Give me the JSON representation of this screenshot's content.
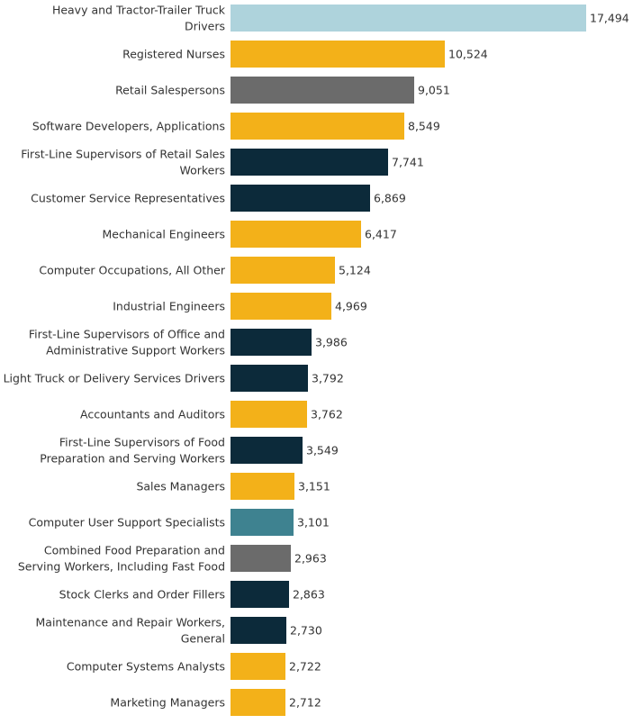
{
  "chart_data": {
    "type": "bar",
    "orientation": "horizontal",
    "title": "",
    "xlabel": "",
    "ylabel": "",
    "xlim": [
      0,
      17494
    ],
    "grid": false,
    "legend": "none",
    "value_format": "thousands-comma",
    "color_key": {
      "light-blue": "#aed3dc",
      "gold": "#f3b119",
      "gray": "#6b6b6b",
      "navy": "#0c2a3a",
      "teal": "#3e8290"
    },
    "bars": [
      {
        "label_lines": [
          "Heavy and Tractor-Trailer Truck",
          "Drivers"
        ],
        "value": 17494,
        "color": "#aed3dc"
      },
      {
        "label_lines": [
          "Registered Nurses"
        ],
        "value": 10524,
        "color": "#f3b119"
      },
      {
        "label_lines": [
          "Retail Salespersons"
        ],
        "value": 9051,
        "color": "#6b6b6b"
      },
      {
        "label_lines": [
          "Software Developers, Applications"
        ],
        "value": 8549,
        "color": "#f3b119"
      },
      {
        "label_lines": [
          "First-Line Supervisors of Retail Sales",
          "Workers"
        ],
        "value": 7741,
        "color": "#0c2a3a"
      },
      {
        "label_lines": [
          "Customer Service Representatives"
        ],
        "value": 6869,
        "color": "#0c2a3a"
      },
      {
        "label_lines": [
          "Mechanical Engineers"
        ],
        "value": 6417,
        "color": "#f3b119"
      },
      {
        "label_lines": [
          "Computer Occupations, All Other"
        ],
        "value": 5124,
        "color": "#f3b119"
      },
      {
        "label_lines": [
          "Industrial Engineers"
        ],
        "value": 4969,
        "color": "#f3b119"
      },
      {
        "label_lines": [
          "First-Line Supervisors of Office and",
          "Administrative Support Workers"
        ],
        "value": 3986,
        "color": "#0c2a3a"
      },
      {
        "label_lines": [
          "Light Truck or Delivery Services Drivers"
        ],
        "value": 3792,
        "color": "#0c2a3a"
      },
      {
        "label_lines": [
          "Accountants and Auditors"
        ],
        "value": 3762,
        "color": "#f3b119"
      },
      {
        "label_lines": [
          "First-Line Supervisors of Food",
          "Preparation and Serving Workers"
        ],
        "value": 3549,
        "color": "#0c2a3a"
      },
      {
        "label_lines": [
          "Sales Managers"
        ],
        "value": 3151,
        "color": "#f3b119"
      },
      {
        "label_lines": [
          "Computer User Support Specialists"
        ],
        "value": 3101,
        "color": "#3e8290"
      },
      {
        "label_lines": [
          "Combined Food Preparation and",
          "Serving Workers, Including Fast Food"
        ],
        "value": 2963,
        "color": "#6b6b6b"
      },
      {
        "label_lines": [
          "Stock Clerks and Order Fillers"
        ],
        "value": 2863,
        "color": "#0c2a3a"
      },
      {
        "label_lines": [
          "Maintenance and Repair Workers,",
          "General"
        ],
        "value": 2730,
        "color": "#0c2a3a"
      },
      {
        "label_lines": [
          "Computer Systems Analysts"
        ],
        "value": 2722,
        "color": "#f3b119"
      },
      {
        "label_lines": [
          "Marketing Managers"
        ],
        "value": 2712,
        "color": "#f3b119"
      }
    ]
  }
}
